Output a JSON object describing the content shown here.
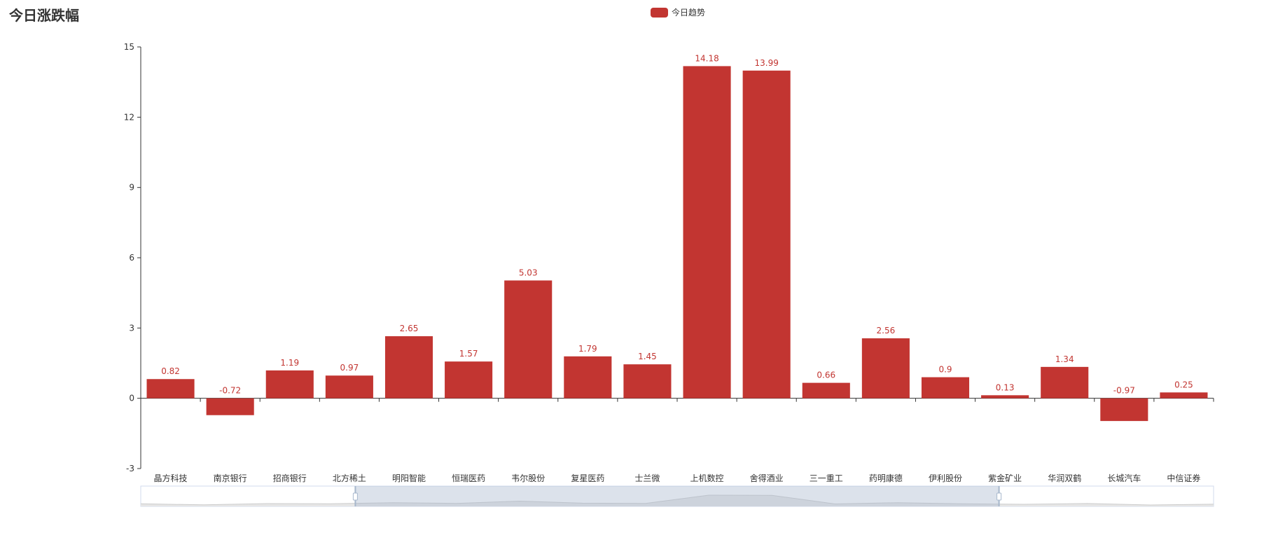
{
  "chart_data": {
    "type": "bar",
    "title": "今日涨跌幅",
    "legend": {
      "position": "top-center",
      "entries": [
        "今日趋势"
      ]
    },
    "series": [
      {
        "name": "今日趋势",
        "color": "#c23531",
        "values": [
          0.82,
          -0.72,
          1.19,
          0.97,
          2.65,
          1.57,
          5.03,
          1.79,
          1.45,
          14.18,
          13.99,
          0.66,
          2.56,
          0.9,
          0.13,
          1.34,
          -0.97,
          0.25
        ]
      }
    ],
    "categories": [
      "晶方科技",
      "南京银行",
      "招商银行",
      "北方稀土",
      "明阳智能",
      "恒瑞医药",
      "韦尔股份",
      "复星医药",
      "士兰微",
      "上机数控",
      "舍得酒业",
      "三一重工",
      "药明康德",
      "伊利股份",
      "紫金矿业",
      "华润双鹤",
      "长城汽车",
      "中信证券"
    ],
    "yticks": [
      -3,
      0,
      3,
      6,
      9,
      12,
      15
    ],
    "ylim": [
      -3,
      15
    ],
    "xlabel": "",
    "ylabel": "",
    "grid": false,
    "data_zoom": {
      "start": 0.2,
      "end": 0.8
    }
  }
}
